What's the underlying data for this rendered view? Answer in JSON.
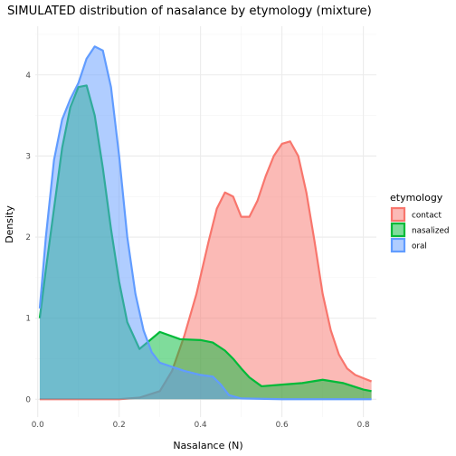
{
  "chart_data": {
    "type": "area",
    "subtype": "density",
    "title": "SIMULATED distribution of nasalance by etymology (mixture)",
    "xlabel": "Nasalance (N)",
    "ylabel": "Density",
    "xlim": [
      -0.006,
      0.832
    ],
    "ylim": [
      -0.22,
      4.6
    ],
    "x_ticks": [
      0.0,
      0.2,
      0.4,
      0.6,
      0.8
    ],
    "x_tick_labels": [
      "0.0",
      "0.2",
      "0.4",
      "0.6",
      "0.8"
    ],
    "y_ticks": [
      0,
      1,
      2,
      3,
      4
    ],
    "y_tick_labels": [
      "0",
      "1",
      "2",
      "3",
      "4"
    ],
    "grid": true,
    "legend": {
      "title": "etymology",
      "position": "right"
    },
    "series": [
      {
        "name": "contact",
        "color": "#F8766D",
        "x": [
          0.005,
          0.1,
          0.2,
          0.25,
          0.3,
          0.33,
          0.36,
          0.39,
          0.42,
          0.44,
          0.46,
          0.48,
          0.5,
          0.52,
          0.54,
          0.56,
          0.58,
          0.6,
          0.62,
          0.64,
          0.66,
          0.68,
          0.7,
          0.72,
          0.74,
          0.76,
          0.78,
          0.8,
          0.82
        ],
        "y": [
          0.0,
          0.0,
          0.0,
          0.02,
          0.1,
          0.35,
          0.78,
          1.3,
          1.95,
          2.35,
          2.55,
          2.5,
          2.25,
          2.25,
          2.45,
          2.75,
          3.0,
          3.15,
          3.18,
          3.0,
          2.55,
          1.95,
          1.3,
          0.85,
          0.55,
          0.38,
          0.3,
          0.26,
          0.22
        ]
      },
      {
        "name": "nasalized",
        "color": "#00BA38",
        "x": [
          0.005,
          0.02,
          0.04,
          0.06,
          0.08,
          0.1,
          0.12,
          0.14,
          0.16,
          0.18,
          0.2,
          0.22,
          0.25,
          0.3,
          0.35,
          0.4,
          0.43,
          0.46,
          0.48,
          0.5,
          0.52,
          0.55,
          0.6,
          0.65,
          0.7,
          0.75,
          0.8,
          0.82
        ],
        "y": [
          1.0,
          1.6,
          2.35,
          3.1,
          3.6,
          3.85,
          3.87,
          3.5,
          2.85,
          2.1,
          1.45,
          0.95,
          0.62,
          0.83,
          0.74,
          0.73,
          0.7,
          0.6,
          0.5,
          0.38,
          0.27,
          0.16,
          0.18,
          0.2,
          0.24,
          0.2,
          0.12,
          0.1
        ]
      },
      {
        "name": "oral",
        "color": "#619CFF",
        "x": [
          0.005,
          0.02,
          0.04,
          0.06,
          0.08,
          0.1,
          0.12,
          0.14,
          0.16,
          0.18,
          0.2,
          0.22,
          0.24,
          0.26,
          0.28,
          0.3,
          0.33,
          0.36,
          0.4,
          0.43,
          0.45,
          0.47,
          0.5,
          0.6,
          0.7,
          0.8,
          0.82
        ],
        "y": [
          1.12,
          2.0,
          2.95,
          3.45,
          3.7,
          3.9,
          4.2,
          4.35,
          4.3,
          3.85,
          3.0,
          2.0,
          1.3,
          0.85,
          0.58,
          0.45,
          0.4,
          0.35,
          0.3,
          0.28,
          0.18,
          0.05,
          0.01,
          0.0,
          0.0,
          0.0,
          0.0
        ]
      }
    ]
  }
}
